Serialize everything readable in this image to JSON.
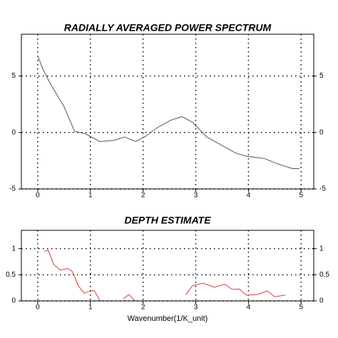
{
  "chart_data": [
    {
      "type": "line",
      "title": "RADIALLY AVERAGED POWER SPECTRUM",
      "x": [
        0,
        0.09,
        0.23,
        0.37,
        0.5,
        0.7,
        0.9,
        1.18,
        1.45,
        1.65,
        1.86,
        2.06,
        2.26,
        2.53,
        2.74,
        2.94,
        3.21,
        3.48,
        3.75,
        3.96,
        4.3,
        4.57,
        4.84,
        4.97
      ],
      "series": [
        {
          "color": "#555555",
          "values": [
            6.8,
            5.7,
            4.4,
            3.3,
            2.3,
            0.1,
            -0.1,
            -0.8,
            -0.7,
            -0.4,
            -0.8,
            -0.3,
            0.4,
            1.1,
            1.4,
            0.9,
            -0.4,
            -1.1,
            -1.8,
            -2.1,
            -2.3,
            -2.8,
            -3.2,
            -3.2
          ]
        }
      ],
      "xlim": [
        -0.31,
        5.24
      ],
      "xticks": [
        0,
        1,
        2,
        3,
        4,
        5
      ],
      "ylim": [
        -5,
        8.7
      ],
      "yticks": [
        -5,
        0,
        5
      ],
      "grid": true
    },
    {
      "type": "line",
      "title": "DEPTH ESTIMATE",
      "xlabel": "Wavenumber(1/K_unit)",
      "x": [
        0.12,
        0.2,
        0.3,
        0.43,
        0.57,
        0.66,
        0.77,
        0.88,
        0.97,
        1.07,
        1.18,
        1.4,
        1.62,
        1.73,
        1.84,
        2.3,
        2.81,
        2.94,
        3.14,
        3.35,
        3.55,
        3.69,
        3.82,
        3.96,
        4.16,
        4.36,
        4.5,
        4.7
      ],
      "series": [
        {
          "color": "#d04040",
          "values": [
            0.95,
            0.97,
            0.7,
            0.59,
            0.62,
            0.56,
            0.29,
            0.15,
            0.18,
            0.2,
            0.01,
            null,
            0.04,
            0.12,
            0.01,
            null,
            0.12,
            0.29,
            0.34,
            0.26,
            0.32,
            0.22,
            0.23,
            0.11,
            0.12,
            0.19,
            0.08,
            0.11
          ]
        }
      ],
      "xlim": [
        -0.31,
        5.24
      ],
      "xticks": [
        0,
        1,
        2,
        3,
        4,
        5
      ],
      "ylim": [
        0,
        1.35
      ],
      "yticks": [
        0,
        0.5,
        1
      ],
      "grid": true
    }
  ]
}
